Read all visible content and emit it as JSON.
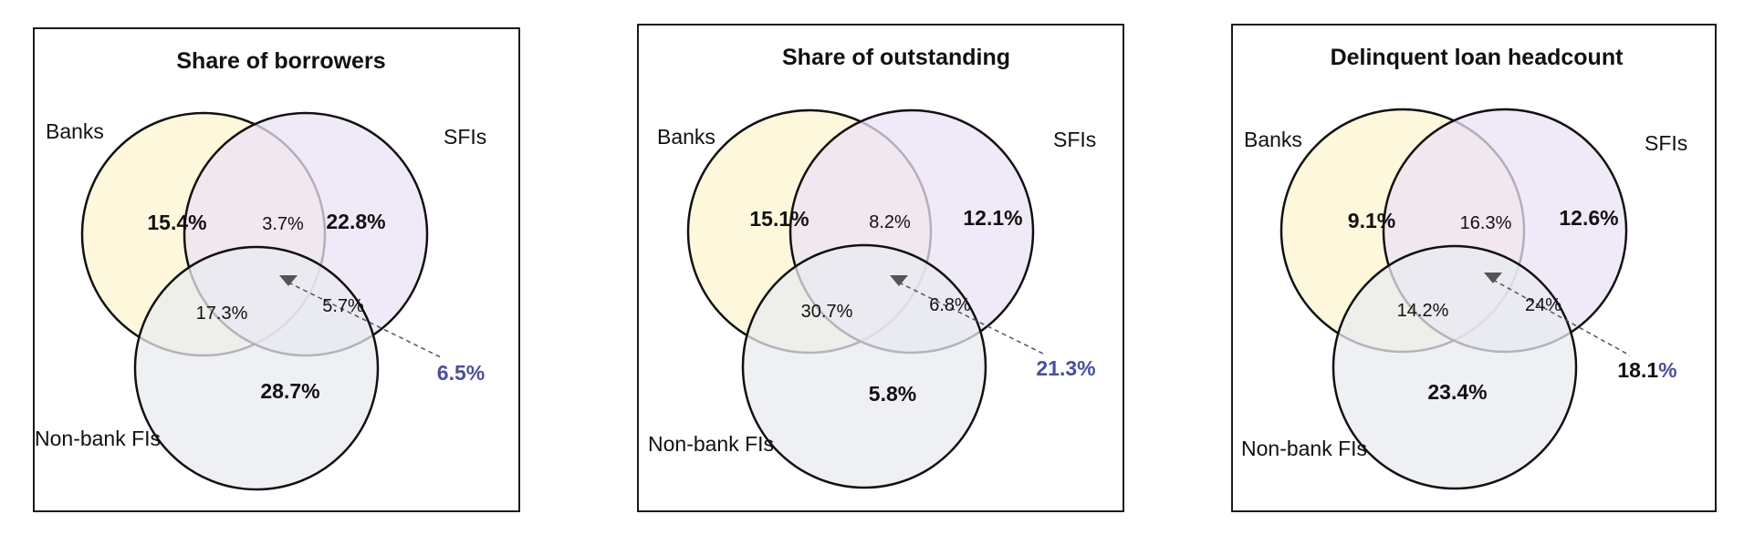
{
  "panels": [
    {
      "title": "Share of borrowers",
      "sets": {
        "a": "Banks",
        "b": "SFIs",
        "c": "Non-bank FIs"
      },
      "regions": {
        "a_only": "15.4%",
        "b_only": "22.8%",
        "c_only": "28.7%",
        "ab": "3.7%",
        "ac": "17.3%",
        "bc": "5.7%",
        "abc_number": "6.5",
        "abc_percent": "%"
      },
      "abc_number_color": "#4a4f9a"
    },
    {
      "title": "Share of outstanding",
      "sets": {
        "a": "Banks",
        "b": "SFIs",
        "c": "Non-bank FIs"
      },
      "regions": {
        "a_only": "15.1%",
        "b_only": "12.1%",
        "c_only": "5.8%",
        "ab": "8.2%",
        "ac": "30.7%",
        "bc": "6.8%",
        "abc_number": "21.3",
        "abc_percent": "%"
      },
      "abc_number_color": "#4a4f9a"
    },
    {
      "title": "Delinquent loan headcount",
      "sets": {
        "a": "Banks",
        "b": "SFIs",
        "c": "Non-bank FIs"
      },
      "regions": {
        "a_only": "9.1%",
        "b_only": "12.6%",
        "c_only": "23.4%",
        "ab": "16.3%",
        "ac": "14.2%",
        "bc": "24%",
        "abc_number": "18.1",
        "abc_percent": "%"
      },
      "abc_number_color": "#111111"
    }
  ],
  "colors": {
    "banks_fill": "#fdf6d8",
    "sfis_fill": "#ebe2f5",
    "nonbank_fill": "#e8ebf0",
    "banks_value": "#8b1a1a",
    "sfis_value": "#6a3fa0",
    "nonbank_value": "#333333",
    "pointer": "#555555",
    "abc_percent": "#4a4f9a"
  }
}
